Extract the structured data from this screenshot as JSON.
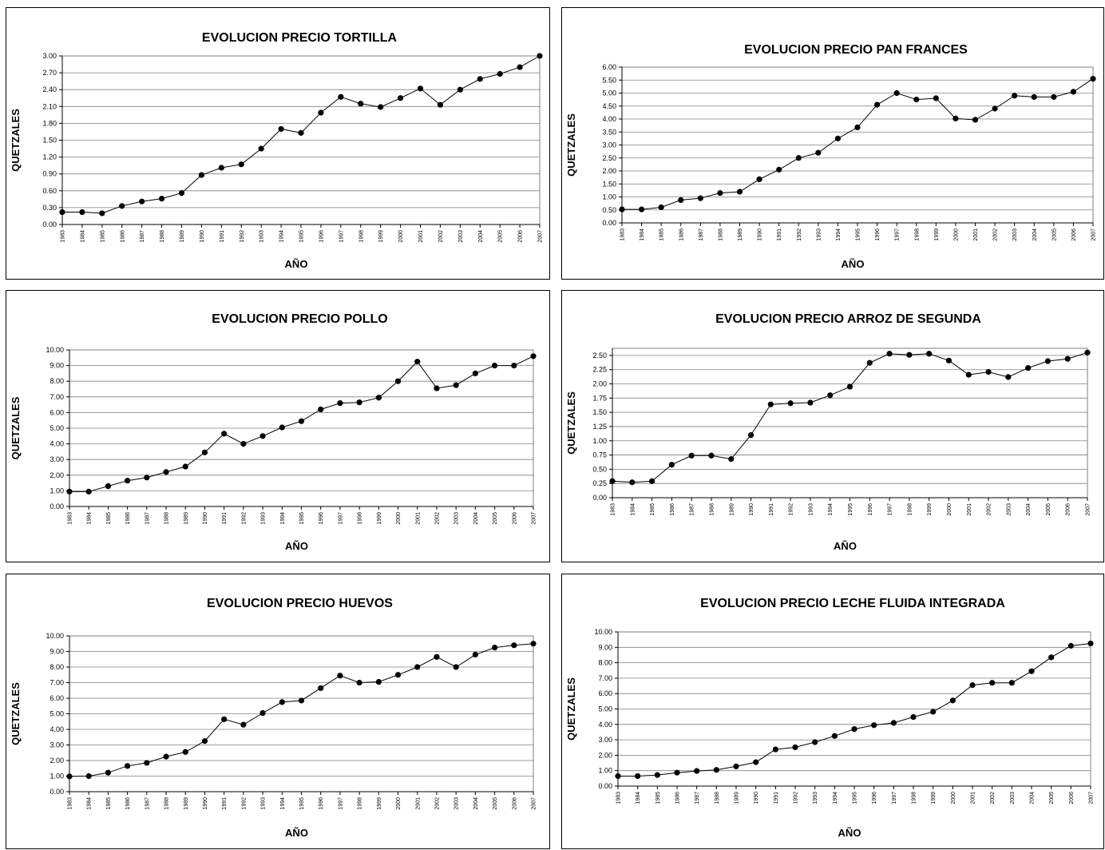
{
  "chart_data": [
    {
      "type": "line",
      "title": "EVOLUCION PRECIO TORTILLA",
      "xlabel": "AÑO",
      "ylabel": "QUETZALES",
      "categories": [
        "1983",
        "1984",
        "1985",
        "1986",
        "1987",
        "1988",
        "1989",
        "1990",
        "1991",
        "1992",
        "1993",
        "1994",
        "1995",
        "1996",
        "1997",
        "1998",
        "1999",
        "2000",
        "2001",
        "2002",
        "2003",
        "2004",
        "2005",
        "2006",
        "2007"
      ],
      "values": [
        0.22,
        0.22,
        0.2,
        0.33,
        0.41,
        0.46,
        0.56,
        0.88,
        1.01,
        1.07,
        1.35,
        1.7,
        1.63,
        1.99,
        2.27,
        2.15,
        2.09,
        2.25,
        2.42,
        2.13,
        2.4,
        2.59,
        2.68,
        2.8,
        3.0
      ],
      "ylim": [
        0,
        3.0
      ],
      "yticks": [
        "0.00",
        "0.30",
        "0.60",
        "0.90",
        "1.20",
        "1.50",
        "1.80",
        "2.10",
        "2.40",
        "2.70",
        "3.00"
      ],
      "grid": true
    },
    {
      "type": "line",
      "title": "EVOLUCION PRECIO PAN FRANCES",
      "xlabel": "AÑO",
      "ylabel": "QUETZALES",
      "categories": [
        "1983",
        "1984",
        "1985",
        "1986",
        "1987",
        "1988",
        "1989",
        "1990",
        "1991",
        "1992",
        "1993",
        "1994",
        "1995",
        "1996",
        "1997",
        "1998",
        "1999",
        "2000",
        "2001",
        "2002",
        "2003",
        "2004",
        "2005",
        "2006",
        "2007"
      ],
      "values": [
        0.52,
        0.52,
        0.6,
        0.88,
        0.95,
        1.15,
        1.2,
        1.68,
        2.05,
        2.5,
        2.7,
        3.25,
        3.68,
        4.55,
        5.0,
        4.75,
        4.8,
        4.02,
        3.97,
        4.4,
        4.9,
        4.85,
        4.85,
        5.05,
        5.55
      ],
      "ylim": [
        0,
        6.0
      ],
      "yticks": [
        "0.00",
        "0.50",
        "1.00",
        "1.50",
        "2.00",
        "2.50",
        "3.00",
        "3.50",
        "4.00",
        "4.50",
        "5.00",
        "5.50",
        "6.00"
      ],
      "grid": true
    },
    {
      "type": "line",
      "title": "EVOLUCION PRECIO POLLO",
      "xlabel": "AÑO",
      "ylabel": "QUETZALES",
      "categories": [
        "1983",
        "1984",
        "1985",
        "1986",
        "1987",
        "1988",
        "1989",
        "1990",
        "1991",
        "1992",
        "1993",
        "1994",
        "1995",
        "1996",
        "1997",
        "1998",
        "1999",
        "2000",
        "2001",
        "2002",
        "2003",
        "2004",
        "2005",
        "2006",
        "2007"
      ],
      "values": [
        0.95,
        0.95,
        1.3,
        1.65,
        1.85,
        2.2,
        2.55,
        3.45,
        4.65,
        4.0,
        4.5,
        5.05,
        5.45,
        6.2,
        6.6,
        6.65,
        6.95,
        8.0,
        9.25,
        7.55,
        7.75,
        8.5,
        9.0,
        9.0,
        9.6
      ],
      "ylim": [
        0,
        10.0
      ],
      "yticks": [
        "0.00",
        "1.00",
        "2.00",
        "3.00",
        "4.00",
        "5.00",
        "6.00",
        "7.00",
        "8.00",
        "9.00",
        "10.00"
      ],
      "grid": true
    },
    {
      "type": "line",
      "title": "EVOLUCION PRECIO ARROZ DE SEGUNDA",
      "xlabel": "AÑO",
      "ylabel": "QUETZALES",
      "categories": [
        "1983",
        "1984",
        "1985",
        "1986",
        "1987",
        "1988",
        "1989",
        "1990",
        "1991",
        "1992",
        "1993",
        "1994",
        "1995",
        "1996",
        "1997",
        "1998",
        "1999",
        "2000",
        "2001",
        "2002",
        "2003",
        "2004",
        "2005",
        "2006",
        "2007"
      ],
      "values": [
        0.29,
        0.27,
        0.29,
        0.58,
        0.74,
        0.74,
        0.68,
        1.1,
        1.64,
        1.66,
        1.67,
        1.8,
        1.95,
        2.37,
        2.53,
        2.51,
        2.53,
        2.41,
        2.16,
        2.21,
        2.12,
        2.28,
        2.4,
        2.44,
        2.55
      ],
      "ylim": [
        0,
        2.625
      ],
      "yticks": [
        "0.00",
        "0.25",
        "0.50",
        "0.75",
        "1.00",
        "1.25",
        "1.50",
        "1.75",
        "2.00",
        "2.25",
        "2.50"
      ],
      "grid": true
    },
    {
      "type": "line",
      "title": "EVOLUCION PRECIO HUEVOS",
      "xlabel": "AÑO",
      "ylabel": "QUETZALES",
      "categories": [
        "1983",
        "1984",
        "1985",
        "1986",
        "1987",
        "1988",
        "1989",
        "1990",
        "1991",
        "1992",
        "1993",
        "1994",
        "1995",
        "1996",
        "1997",
        "1998",
        "1999",
        "2000",
        "2001",
        "2002",
        "2003",
        "2004",
        "2005",
        "2006",
        "2007"
      ],
      "values": [
        0.98,
        1.0,
        1.22,
        1.65,
        1.85,
        2.25,
        2.55,
        3.25,
        4.65,
        4.3,
        5.05,
        5.75,
        5.85,
        6.65,
        7.45,
        7.0,
        7.05,
        7.5,
        8.0,
        8.65,
        8.0,
        8.8,
        9.25,
        9.4,
        9.5
      ],
      "ylim": [
        0,
        10.0
      ],
      "yticks": [
        "0.00",
        "1.00",
        "2.00",
        "3.00",
        "4.00",
        "5.00",
        "6.00",
        "7.00",
        "8.00",
        "9.00",
        "10.00"
      ],
      "grid": true
    },
    {
      "type": "line",
      "title": "EVOLUCION PRECIO LECHE FLUIDA INTEGRADA",
      "xlabel": "AÑO",
      "ylabel": "QUETZALES",
      "categories": [
        "1983",
        "1984",
        "1985",
        "1986",
        "1987",
        "1988",
        "1989",
        "1990",
        "1991",
        "1992",
        "1993",
        "1994",
        "1995",
        "1996",
        "1997",
        "1998",
        "1999",
        "2000",
        "2001",
        "2002",
        "2003",
        "2004",
        "2005",
        "2006",
        "2007"
      ],
      "values": [
        0.65,
        0.65,
        0.72,
        0.87,
        0.98,
        1.05,
        1.28,
        1.55,
        2.38,
        2.52,
        2.85,
        3.25,
        3.7,
        3.95,
        4.1,
        4.48,
        4.82,
        5.55,
        6.55,
        6.7,
        6.7,
        7.45,
        8.35,
        9.1,
        9.25
      ],
      "ylim": [
        0,
        10.0
      ],
      "yticks": [
        "0.00",
        "1.00",
        "2.00",
        "3.00",
        "4.00",
        "5.00",
        "6.00",
        "7.00",
        "8.00",
        "9.00",
        "10.00"
      ],
      "grid": true
    }
  ]
}
